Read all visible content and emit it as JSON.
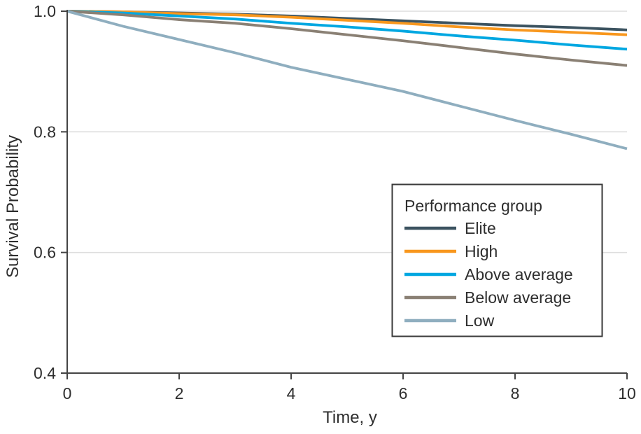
{
  "chart_data": {
    "type": "line",
    "title": "",
    "xlabel": "Time, y",
    "ylabel": "Survival Probability",
    "xlim": [
      0,
      10
    ],
    "ylim": [
      0.4,
      1.0
    ],
    "xticks": [
      "0",
      "2",
      "4",
      "6",
      "8",
      "10"
    ],
    "yticks": [
      "1.0",
      "0.8",
      "0.6",
      "0.4"
    ],
    "grid": "horizontal gridlines at 1.0, 0.8 and 0.6",
    "legend": {
      "title": "Performance group",
      "position": "center-right"
    },
    "x": [
      0,
      1,
      2,
      3,
      4,
      5,
      6,
      7,
      8,
      9,
      10
    ],
    "series": [
      {
        "name": "Elite",
        "color": "#3C5360",
        "values": [
          1.0,
          0.999,
          0.997,
          0.995,
          0.992,
          0.988,
          0.984,
          0.98,
          0.976,
          0.973,
          0.969
        ]
      },
      {
        "name": "High",
        "color": "#F8971D",
        "values": [
          1.0,
          0.999,
          0.996,
          0.994,
          0.99,
          0.985,
          0.98,
          0.974,
          0.969,
          0.965,
          0.961
        ]
      },
      {
        "name": "Above average",
        "color": "#00A7E1",
        "values": [
          1.0,
          0.997,
          0.992,
          0.987,
          0.98,
          0.974,
          0.967,
          0.959,
          0.952,
          0.944,
          0.937
        ]
      },
      {
        "name": "Below average",
        "color": "#8A8074",
        "values": [
          1.0,
          0.994,
          0.986,
          0.98,
          0.971,
          0.961,
          0.951,
          0.94,
          0.929,
          0.919,
          0.91
        ]
      },
      {
        "name": "Low",
        "color": "#8FAEBF",
        "values": [
          1.0,
          0.975,
          0.953,
          0.931,
          0.907,
          0.887,
          0.867,
          0.843,
          0.819,
          0.796,
          0.772
        ]
      }
    ]
  },
  "colors": {
    "background": "#FFFFFF",
    "axis": "#444444",
    "grid": "#DEDEDE",
    "text": "#2E2E2E",
    "legend_border": "#3A3A3A",
    "legend_fill": "#FFFFFF"
  }
}
